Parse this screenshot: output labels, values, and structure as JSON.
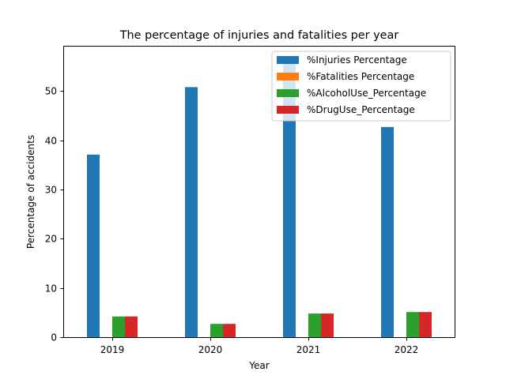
{
  "chart_data": {
    "type": "bar",
    "title": "The percentage of injuries and fatalities per year",
    "xlabel": "Year",
    "ylabel": "Percentage of accidents",
    "categories": [
      "2019",
      "2020",
      "2021",
      "2022"
    ],
    "ylim": [
      0,
      59.2
    ],
    "yticks": [
      0,
      10,
      20,
      30,
      40,
      50
    ],
    "grid": false,
    "legend_position": "top-right",
    "series": [
      {
        "name": "%Injuries Percentage",
        "color": "#1f77b4",
        "values": [
          37.1,
          50.8,
          56.4,
          42.7
        ]
      },
      {
        "name": "%Fatalities Percentage",
        "color": "#ff7f0e",
        "values": [
          0,
          0,
          0,
          0
        ]
      },
      {
        "name": "%AlcoholUse_Percentage",
        "color": "#2ca02c",
        "values": [
          4.2,
          2.7,
          4.8,
          5.1
        ]
      },
      {
        "name": "%DrugUse_Percentage",
        "color": "#d62728",
        "values": [
          4.2,
          2.7,
          4.8,
          5.1
        ]
      }
    ]
  }
}
